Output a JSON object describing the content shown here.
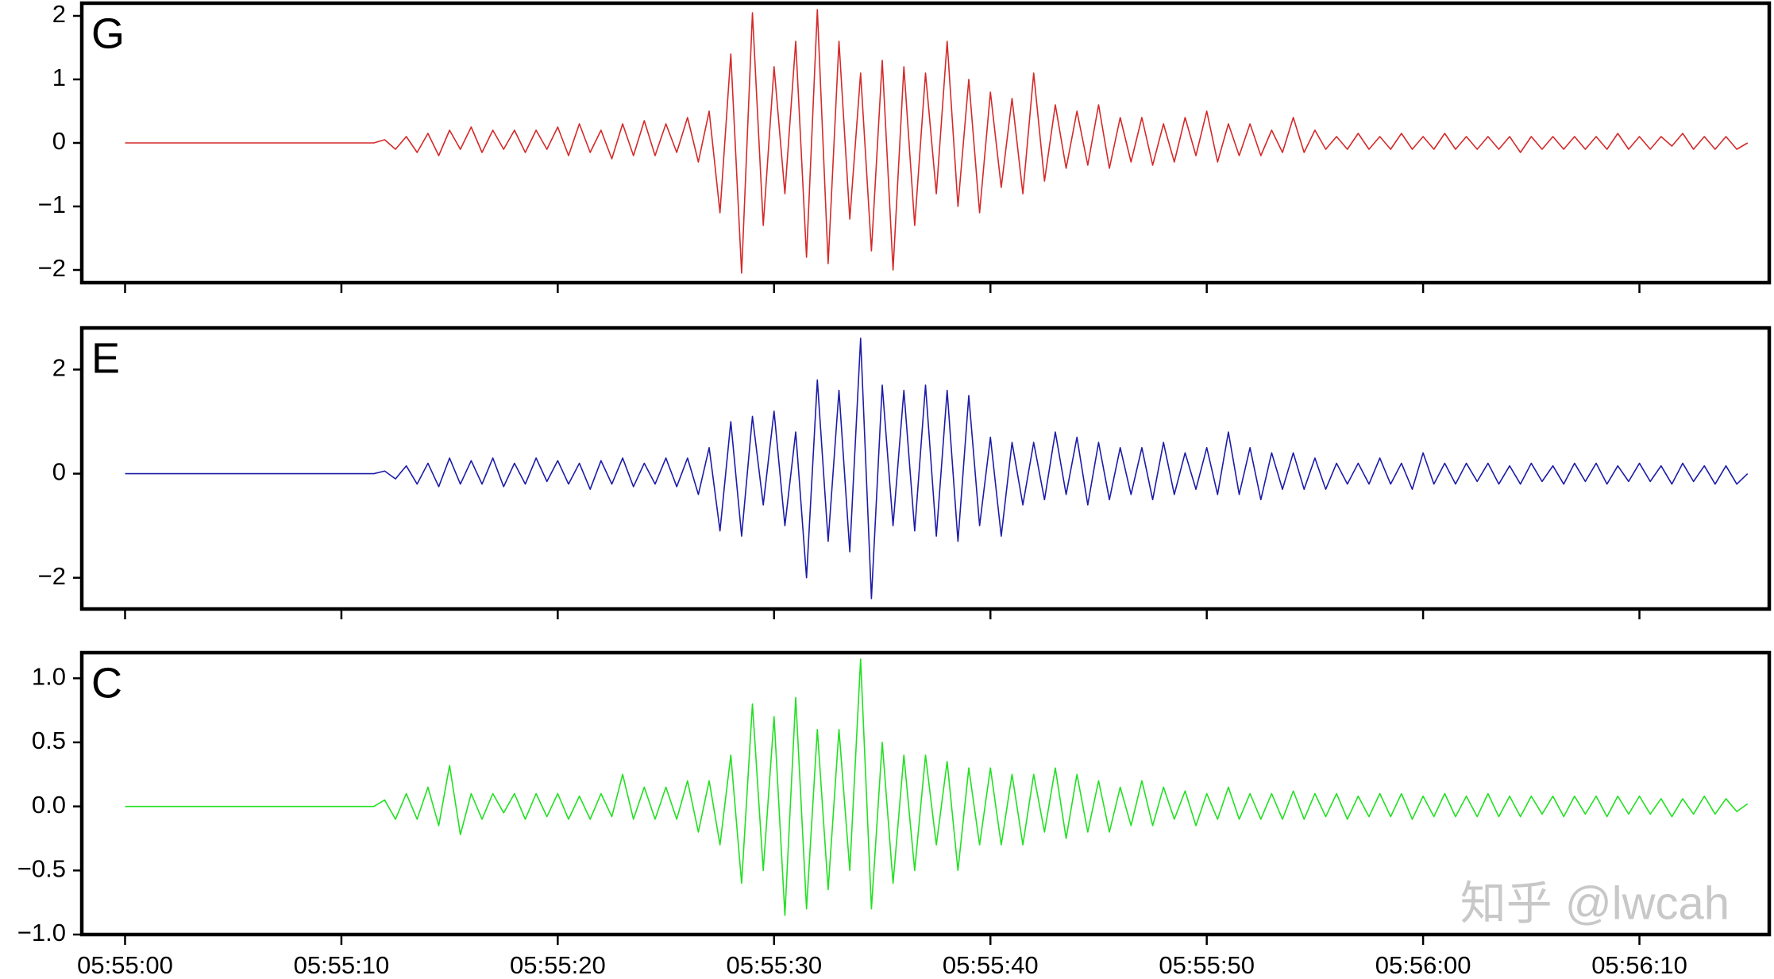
{
  "chart_data": [
    {
      "type": "line",
      "label": "G",
      "color": "#d42a2a",
      "xlim": [
        -2,
        76
      ],
      "xticks": [
        0,
        10,
        20,
        30,
        40,
        50,
        60,
        70
      ],
      "ylim": [
        -2.2,
        2.2
      ],
      "yticks": [
        {
          "value": -2,
          "label": "−2"
        },
        {
          "value": -1,
          "label": "−1"
        },
        0,
        1,
        2
      ],
      "x": [
        0,
        0.5,
        1,
        1.5,
        2,
        2.5,
        3,
        3.5,
        4,
        4.5,
        5,
        5.5,
        6,
        6.5,
        7,
        7.5,
        8,
        8.5,
        9,
        9.5,
        10,
        10.5,
        11,
        11.5,
        12,
        12.5,
        13,
        13.5,
        14,
        14.5,
        15,
        15.5,
        16,
        16.5,
        17,
        17.5,
        18,
        18.5,
        19,
        19.5,
        20,
        20.5,
        21,
        21.5,
        22,
        22.5,
        23,
        23.5,
        24,
        24.5,
        25,
        25.5,
        26,
        26.5,
        27,
        27.5,
        28,
        28.5,
        29,
        29.5,
        30,
        30.5,
        31,
        31.5,
        32,
        32.5,
        33,
        33.5,
        34,
        34.5,
        35,
        35.5,
        36,
        36.5,
        37,
        37.5,
        38,
        38.5,
        39,
        39.5,
        40,
        40.5,
        41,
        41.5,
        42,
        42.5,
        43,
        43.5,
        44,
        44.5,
        45,
        45.5,
        46,
        46.5,
        47,
        47.5,
        48,
        48.5,
        49,
        49.5,
        50,
        50.5,
        51,
        51.5,
        52,
        52.5,
        53,
        53.5,
        54,
        54.5,
        55,
        55.5,
        56,
        56.5,
        57,
        57.5,
        58,
        58.5,
        59,
        59.5,
        60,
        60.5,
        61,
        61.5,
        62,
        62.5,
        63,
        63.5,
        64,
        64.5,
        65,
        65.5,
        66,
        66.5,
        67,
        67.5,
        68,
        68.5,
        69,
        69.5,
        70,
        70.5,
        71,
        71.5,
        72,
        72.5,
        73,
        73.5,
        74,
        74.5,
        75
      ],
      "values": [
        0,
        0,
        0,
        0,
        0,
        0,
        0,
        0,
        0,
        0,
        0,
        0,
        0,
        0,
        0,
        0,
        0,
        0,
        0,
        0,
        0,
        0,
        0,
        0,
        0.05,
        -0.1,
        0.1,
        -0.15,
        0.15,
        -0.2,
        0.2,
        -0.1,
        0.25,
        -0.15,
        0.2,
        -0.1,
        0.2,
        -0.15,
        0.2,
        -0.1,
        0.25,
        -0.2,
        0.3,
        -0.15,
        0.2,
        -0.25,
        0.3,
        -0.2,
        0.35,
        -0.2,
        0.3,
        -0.15,
        0.4,
        -0.3,
        0.5,
        -1.1,
        1.4,
        -2.05,
        2.05,
        -1.3,
        1.2,
        -0.8,
        1.6,
        -1.8,
        2.1,
        -1.9,
        1.6,
        -1.2,
        1.1,
        -1.7,
        1.3,
        -2.0,
        1.2,
        -1.3,
        1.1,
        -0.8,
        1.6,
        -1.0,
        1.0,
        -1.1,
        0.8,
        -0.7,
        0.7,
        -0.8,
        1.1,
        -0.6,
        0.6,
        -0.4,
        0.5,
        -0.35,
        0.6,
        -0.4,
        0.4,
        -0.3,
        0.4,
        -0.35,
        0.3,
        -0.3,
        0.4,
        -0.2,
        0.5,
        -0.3,
        0.3,
        -0.2,
        0.3,
        -0.2,
        0.2,
        -0.15,
        0.4,
        -0.15,
        0.2,
        -0.1,
        0.1,
        -0.1,
        0.15,
        -0.1,
        0.1,
        -0.1,
        0.15,
        -0.1,
        0.1,
        -0.1,
        0.15,
        -0.1,
        0.1,
        -0.1,
        0.1,
        -0.1,
        0.1,
        -0.15,
        0.1,
        -0.1,
        0.1,
        -0.1,
        0.1,
        -0.1,
        0.1,
        -0.1,
        0.15,
        -0.1,
        0.1,
        -0.1,
        0.1,
        -0.05,
        0.15,
        -0.1,
        0.1,
        -0.1,
        0.1,
        -0.1,
        0
      ]
    },
    {
      "type": "line",
      "label": "E",
      "color": "#1c1ca8",
      "xlim": [
        -2,
        76
      ],
      "xticks": [
        0,
        10,
        20,
        30,
        40,
        50,
        60,
        70
      ],
      "ylim": [
        -2.6,
        2.8
      ],
      "yticks": [
        {
          "value": -2,
          "label": "−2"
        },
        0,
        2
      ],
      "x": [
        0,
        0.5,
        1,
        1.5,
        2,
        2.5,
        3,
        3.5,
        4,
        4.5,
        5,
        5.5,
        6,
        6.5,
        7,
        7.5,
        8,
        8.5,
        9,
        9.5,
        10,
        10.5,
        11,
        11.5,
        12,
        12.5,
        13,
        13.5,
        14,
        14.5,
        15,
        15.5,
        16,
        16.5,
        17,
        17.5,
        18,
        18.5,
        19,
        19.5,
        20,
        20.5,
        21,
        21.5,
        22,
        22.5,
        23,
        23.5,
        24,
        24.5,
        25,
        25.5,
        26,
        26.5,
        27,
        27.5,
        28,
        28.5,
        29,
        29.5,
        30,
        30.5,
        31,
        31.5,
        32,
        32.5,
        33,
        33.5,
        34,
        34.5,
        35,
        35.5,
        36,
        36.5,
        37,
        37.5,
        38,
        38.5,
        39,
        39.5,
        40,
        40.5,
        41,
        41.5,
        42,
        42.5,
        43,
        43.5,
        44,
        44.5,
        45,
        45.5,
        46,
        46.5,
        47,
        47.5,
        48,
        48.5,
        49,
        49.5,
        50,
        50.5,
        51,
        51.5,
        52,
        52.5,
        53,
        53.5,
        54,
        54.5,
        55,
        55.5,
        56,
        56.5,
        57,
        57.5,
        58,
        58.5,
        59,
        59.5,
        60,
        60.5,
        61,
        61.5,
        62,
        62.5,
        63,
        63.5,
        64,
        64.5,
        65,
        65.5,
        66,
        66.5,
        67,
        67.5,
        68,
        68.5,
        69,
        69.5,
        70,
        70.5,
        71,
        71.5,
        72,
        72.5,
        73,
        73.5,
        74,
        74.5,
        75
      ],
      "values": [
        0,
        0,
        0,
        0,
        0,
        0,
        0,
        0,
        0,
        0,
        0,
        0,
        0,
        0,
        0,
        0,
        0,
        0,
        0,
        0,
        0,
        0,
        0,
        0,
        0.05,
        -0.1,
        0.15,
        -0.2,
        0.2,
        -0.25,
        0.3,
        -0.2,
        0.25,
        -0.2,
        0.3,
        -0.25,
        0.2,
        -0.2,
        0.3,
        -0.15,
        0.25,
        -0.2,
        0.2,
        -0.3,
        0.25,
        -0.2,
        0.3,
        -0.25,
        0.2,
        -0.2,
        0.3,
        -0.25,
        0.3,
        -0.4,
        0.5,
        -1.1,
        1.0,
        -1.2,
        1.1,
        -0.6,
        1.2,
        -1.0,
        0.8,
        -2.0,
        1.8,
        -1.3,
        1.6,
        -1.5,
        2.6,
        -2.4,
        1.7,
        -1.0,
        1.6,
        -1.1,
        1.7,
        -1.2,
        1.6,
        -1.3,
        1.5,
        -1.0,
        0.7,
        -1.2,
        0.6,
        -0.6,
        0.6,
        -0.5,
        0.8,
        -0.4,
        0.7,
        -0.6,
        0.6,
        -0.5,
        0.5,
        -0.4,
        0.5,
        -0.5,
        0.6,
        -0.4,
        0.4,
        -0.3,
        0.5,
        -0.4,
        0.8,
        -0.4,
        0.5,
        -0.5,
        0.4,
        -0.3,
        0.4,
        -0.3,
        0.3,
        -0.3,
        0.2,
        -0.2,
        0.2,
        -0.2,
        0.3,
        -0.2,
        0.2,
        -0.3,
        0.4,
        -0.2,
        0.2,
        -0.2,
        0.2,
        -0.15,
        0.2,
        -0.2,
        0.15,
        -0.2,
        0.2,
        -0.15,
        0.15,
        -0.2,
        0.2,
        -0.15,
        0.2,
        -0.2,
        0.15,
        -0.15,
        0.2,
        -0.15,
        0.15,
        -0.2,
        0.2,
        -0.15,
        0.15,
        -0.2,
        0.15,
        -0.2,
        0
      ]
    },
    {
      "type": "line",
      "label": "C",
      "color": "#22e022",
      "xlim": [
        -2,
        76
      ],
      "xticks": [
        {
          "value": 0,
          "label": "05:55:00"
        },
        {
          "value": 10,
          "label": "05:55:10"
        },
        {
          "value": 20,
          "label": "05:55:20"
        },
        {
          "value": 30,
          "label": "05:55:30"
        },
        {
          "value": 40,
          "label": "05:55:40"
        },
        {
          "value": 50,
          "label": "05:55:50"
        },
        {
          "value": 60,
          "label": "05:56:00"
        },
        {
          "value": 70,
          "label": "05:56:10"
        }
      ],
      "ylim": [
        -1.0,
        1.2
      ],
      "yticks": [
        {
          "value": -1,
          "label": "−1.0"
        },
        {
          "value": -0.5,
          "label": "−0.5"
        },
        {
          "value": 0,
          "label": "0.0"
        },
        0.5,
        {
          "value": 1,
          "label": "1.0"
        }
      ],
      "x": [
        0,
        0.5,
        1,
        1.5,
        2,
        2.5,
        3,
        3.5,
        4,
        4.5,
        5,
        5.5,
        6,
        6.5,
        7,
        7.5,
        8,
        8.5,
        9,
        9.5,
        10,
        10.5,
        11,
        11.5,
        12,
        12.5,
        13,
        13.5,
        14,
        14.5,
        15,
        15.5,
        16,
        16.5,
        17,
        17.5,
        18,
        18.5,
        19,
        19.5,
        20,
        20.5,
        21,
        21.5,
        22,
        22.5,
        23,
        23.5,
        24,
        24.5,
        25,
        25.5,
        26,
        26.5,
        27,
        27.5,
        28,
        28.5,
        29,
        29.5,
        30,
        30.5,
        31,
        31.5,
        32,
        32.5,
        33,
        33.5,
        34,
        34.5,
        35,
        35.5,
        36,
        36.5,
        37,
        37.5,
        38,
        38.5,
        39,
        39.5,
        40,
        40.5,
        41,
        41.5,
        42,
        42.5,
        43,
        43.5,
        44,
        44.5,
        45,
        45.5,
        46,
        46.5,
        47,
        47.5,
        48,
        48.5,
        49,
        49.5,
        50,
        50.5,
        51,
        51.5,
        52,
        52.5,
        53,
        53.5,
        54,
        54.5,
        55,
        55.5,
        56,
        56.5,
        57,
        57.5,
        58,
        58.5,
        59,
        59.5,
        60,
        60.5,
        61,
        61.5,
        62,
        62.5,
        63,
        63.5,
        64,
        64.5,
        65,
        65.5,
        66,
        66.5,
        67,
        67.5,
        68,
        68.5,
        69,
        69.5,
        70,
        70.5,
        71,
        71.5,
        72,
        72.5,
        73,
        73.5,
        74,
        74.5,
        75
      ],
      "values": [
        0,
        0,
        0,
        0,
        0,
        0,
        0,
        0,
        0,
        0,
        0,
        0,
        0,
        0,
        0,
        0,
        0,
        0,
        0,
        0,
        0,
        0,
        0,
        0,
        0.05,
        -0.1,
        0.1,
        -0.1,
        0.15,
        -0.15,
        0.32,
        -0.22,
        0.1,
        -0.1,
        0.1,
        -0.05,
        0.1,
        -0.1,
        0.1,
        -0.08,
        0.1,
        -0.1,
        0.08,
        -0.1,
        0.1,
        -0.08,
        0.25,
        -0.1,
        0.15,
        -0.1,
        0.15,
        -0.1,
        0.2,
        -0.2,
        0.2,
        -0.3,
        0.4,
        -0.6,
        0.8,
        -0.5,
        0.7,
        -0.85,
        0.85,
        -0.8,
        0.6,
        -0.65,
        0.6,
        -0.5,
        1.15,
        -0.8,
        0.5,
        -0.6,
        0.4,
        -0.5,
        0.4,
        -0.3,
        0.35,
        -0.5,
        0.3,
        -0.3,
        0.3,
        -0.3,
        0.25,
        -0.3,
        0.25,
        -0.2,
        0.3,
        -0.25,
        0.25,
        -0.2,
        0.2,
        -0.2,
        0.15,
        -0.15,
        0.2,
        -0.15,
        0.15,
        -0.1,
        0.12,
        -0.15,
        0.1,
        -0.1,
        0.15,
        -0.1,
        0.1,
        -0.1,
        0.1,
        -0.1,
        0.12,
        -0.1,
        0.1,
        -0.08,
        0.1,
        -0.1,
        0.08,
        -0.08,
        0.1,
        -0.08,
        0.1,
        -0.1,
        0.08,
        -0.08,
        0.1,
        -0.08,
        0.08,
        -0.08,
        0.1,
        -0.08,
        0.08,
        -0.08,
        0.08,
        -0.06,
        0.08,
        -0.08,
        0.08,
        -0.06,
        0.08,
        -0.08,
        0.08,
        -0.06,
        0.08,
        -0.06,
        0.06,
        -0.08,
        0.06,
        -0.06,
        0.08,
        -0.06,
        0.06,
        -0.04,
        0.02
      ]
    }
  ],
  "watermark": "知乎 @lwcah"
}
